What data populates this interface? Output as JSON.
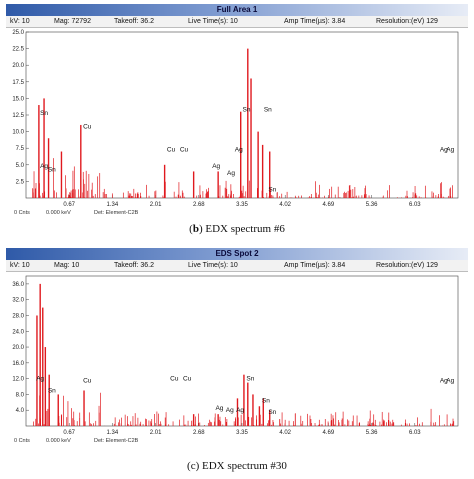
{
  "panels": [
    {
      "title": "Full Area 1",
      "params": {
        "kv": "kV: 10",
        "mag": "Mag: 72792",
        "takeoff": "Takeoff: 36.2",
        "live": "Live Time(s): 10",
        "amp": "Amp Time(µs): 3.84",
        "res": "Resolution:(eV) 129"
      },
      "footer": {
        "counts": "0 Cnts",
        "energy": "0.000 keV",
        "detector": "Det: Element-C2B"
      },
      "caption_tag": "b",
      "caption_text": " EDX spectrum #6"
    },
    {
      "title": "EDS Spot 2",
      "params": {
        "kv": "kV: 10",
        "mag": "Mag: 10",
        "takeoff": "Takeoff: 36.2",
        "live": "Live Time(s): 10",
        "amp": "Amp Time(µs): 3.84",
        "res": "Resolution:(eV) 129"
      },
      "footer": {
        "counts": "0 Cnts",
        "energy": "0.000 keV",
        "detector": "Det: Element-C2B"
      },
      "caption_tag": "",
      "caption_text": "(c) EDX spectrum #30"
    }
  ],
  "chart_data": [
    {
      "type": "bar",
      "xlim": [
        0,
        6.7
      ],
      "ylim": [
        0,
        25
      ],
      "x_ticks": [
        "0.67",
        "1.34",
        "2.01",
        "2.68",
        "3.35",
        "4.02",
        "4.69",
        "5.36",
        "6.03"
      ],
      "y_ticks": [
        "2.5",
        "5.0",
        "7.5",
        "10.0",
        "12.5",
        "15.0",
        "17.5",
        "20.0",
        "22.5",
        "25.0"
      ],
      "bar_color": "#e0191e",
      "peaks": [
        {
          "x": 0.2,
          "y": 14
        },
        {
          "x": 0.28,
          "y": 15
        },
        {
          "x": 0.35,
          "y": 9
        },
        {
          "x": 0.55,
          "y": 7
        },
        {
          "x": 0.85,
          "y": 11
        },
        {
          "x": 2.15,
          "y": 5
        },
        {
          "x": 2.6,
          "y": 4
        },
        {
          "x": 2.98,
          "y": 4
        },
        {
          "x": 3.33,
          "y": 13
        },
        {
          "x": 3.44,
          "y": 22.5
        },
        {
          "x": 3.49,
          "y": 18
        },
        {
          "x": 3.6,
          "y": 10
        },
        {
          "x": 3.67,
          "y": 8
        },
        {
          "x": 3.78,
          "y": 7
        }
      ],
      "annotations": [
        {
          "label": "Sn",
          "x": 0.28,
          "y": 12.5
        },
        {
          "label": "Cu",
          "x": 0.95,
          "y": 10.5
        },
        {
          "label": "Ag",
          "x": 0.28,
          "y": 4.5
        },
        {
          "label": "Sn",
          "x": 0.4,
          "y": 4.0
        },
        {
          "label": "Cu",
          "x": 2.25,
          "y": 7.0
        },
        {
          "label": "Cu",
          "x": 2.45,
          "y": 7.0
        },
        {
          "label": "Ag",
          "x": 2.95,
          "y": 4.5
        },
        {
          "label": "Ag",
          "x": 3.18,
          "y": 3.5
        },
        {
          "label": "Ag",
          "x": 3.3,
          "y": 7.0
        },
        {
          "label": "Sn",
          "x": 3.42,
          "y": 13.0
        },
        {
          "label": "Sn",
          "x": 3.75,
          "y": 13.0
        },
        {
          "label": "Sn",
          "x": 3.82,
          "y": 1.0
        },
        {
          "label": "Ag",
          "x": 6.48,
          "y": 7.0
        },
        {
          "label": "Ag",
          "x": 6.58,
          "y": 7.0
        }
      ]
    },
    {
      "type": "bar",
      "xlim": [
        0,
        6.7
      ],
      "ylim": [
        0,
        38
      ],
      "x_ticks": [
        "0.67",
        "1.34",
        "2.01",
        "2.68",
        "3.35",
        "4.02",
        "4.69",
        "5.36",
        "6.03"
      ],
      "y_ticks": [
        "4.0",
        "8.0",
        "12.0",
        "16.0",
        "20.0",
        "24.0",
        "28.0",
        "32.0",
        "36.0"
      ],
      "bar_color": "#e0191e",
      "peaks": [
        {
          "x": 0.17,
          "y": 28
        },
        {
          "x": 0.22,
          "y": 36
        },
        {
          "x": 0.26,
          "y": 30
        },
        {
          "x": 0.3,
          "y": 20
        },
        {
          "x": 0.36,
          "y": 13
        },
        {
          "x": 0.5,
          "y": 8
        },
        {
          "x": 0.9,
          "y": 9
        },
        {
          "x": 2.6,
          "y": 3
        },
        {
          "x": 2.98,
          "y": 3
        },
        {
          "x": 3.28,
          "y": 7
        },
        {
          "x": 3.38,
          "y": 13
        },
        {
          "x": 3.44,
          "y": 11
        },
        {
          "x": 3.52,
          "y": 8
        },
        {
          "x": 3.62,
          "y": 5
        },
        {
          "x": 3.68,
          "y": 7
        },
        {
          "x": 3.78,
          "y": 4
        }
      ],
      "annotations": [
        {
          "label": "Ag",
          "x": 0.22,
          "y": 11.5
        },
        {
          "label": "Sn",
          "x": 0.4,
          "y": 8.5
        },
        {
          "label": "Cu",
          "x": 0.95,
          "y": 11.0
        },
        {
          "label": "Cu",
          "x": 2.3,
          "y": 11.5
        },
        {
          "label": "Cu",
          "x": 2.5,
          "y": 11.5
        },
        {
          "label": "Sn",
          "x": 3.48,
          "y": 11.5
        },
        {
          "label": "Ag",
          "x": 3.0,
          "y": 4.0
        },
        {
          "label": "Ag",
          "x": 3.16,
          "y": 3.5
        },
        {
          "label": "Ag",
          "x": 3.32,
          "y": 3.5
        },
        {
          "label": "Sn",
          "x": 3.72,
          "y": 6.0
        },
        {
          "label": "Sn",
          "x": 3.82,
          "y": 3.0
        },
        {
          "label": "Ag",
          "x": 6.48,
          "y": 11.0
        },
        {
          "label": "Ag",
          "x": 6.58,
          "y": 11.0
        }
      ]
    }
  ]
}
